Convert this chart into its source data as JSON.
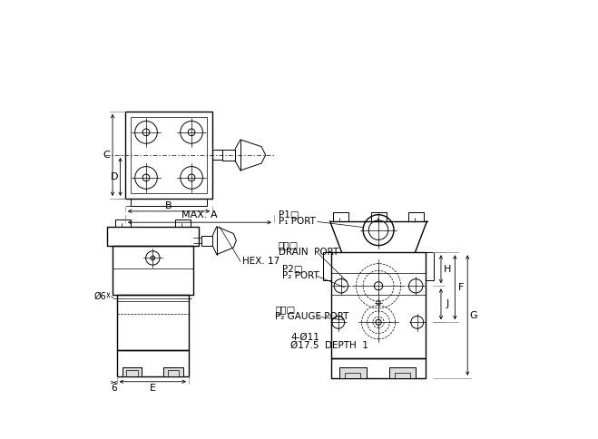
{
  "bg_color": "#ffffff",
  "line_color": "#000000",
  "fig_width": 6.59,
  "fig_height": 4.84,
  "dpi": 100,
  "labels": {
    "C": "C",
    "D": "D",
    "B": "B",
    "MAX_A": "MAX. A",
    "phi6": "Ø6",
    "six": "6",
    "E": "E",
    "hex17": "HEX. 17",
    "H": "H",
    "J": "J",
    "F": "F",
    "G": "G",
    "p1_sq": "P1□",
    "p1_port": "P₁ PORT",
    "drain_cn": "湅流□",
    "drain_port": "DRAIN  PORT",
    "p2_sq": "P2□",
    "p2_port": "P₂ PORT",
    "gauge_cn": "測壓□",
    "gauge_port": "P₂ GAUGE PORT",
    "four_phi11": "4-Ø11",
    "depth": "Ø17.5  DEPTH  1"
  }
}
